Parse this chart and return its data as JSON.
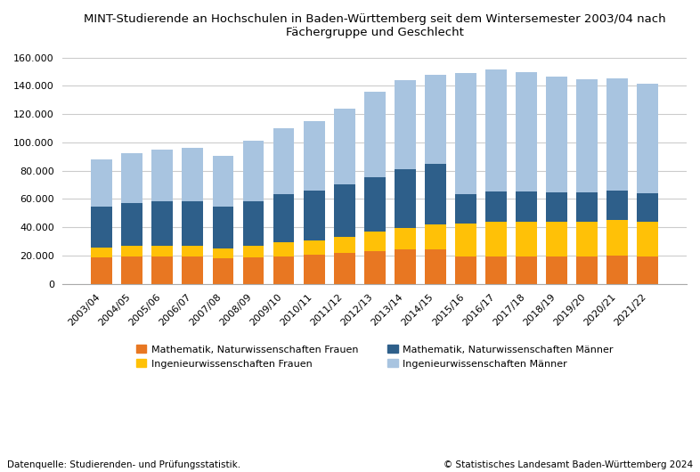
{
  "years": [
    "2003/04",
    "2004/05",
    "2005/06",
    "2006/07",
    "2007/08",
    "2008/09",
    "2009/10",
    "2010/11",
    "2011/12",
    "2012/13",
    "2013/14",
    "2014/15",
    "2015/16",
    "2016/17",
    "2017/18",
    "2018/19",
    "2019/20",
    "2020/21",
    "2021/22"
  ],
  "math_nat_frauen": [
    18500,
    19000,
    19000,
    19000,
    18000,
    18500,
    19500,
    20500,
    21500,
    23000,
    24000,
    24500,
    19000,
    19500,
    19500,
    19500,
    19500,
    20000,
    19500
  ],
  "ing_frauen": [
    7000,
    7500,
    7500,
    8000,
    7000,
    8500,
    9500,
    10000,
    11500,
    14000,
    15500,
    17500,
    23500,
    24500,
    24500,
    24500,
    24500,
    25000,
    24500
  ],
  "math_nat_maenner": [
    29000,
    30500,
    31500,
    31500,
    29500,
    31500,
    34500,
    35500,
    37000,
    38000,
    41500,
    42500,
    21000,
    21000,
    21000,
    20500,
    20500,
    21000,
    20000
  ],
  "ing_maenner": [
    33500,
    35500,
    37000,
    37500,
    36000,
    42500,
    46500,
    49000,
    54000,
    60500,
    63000,
    63500,
    85500,
    86500,
    84500,
    82000,
    80000,
    79000,
    77500
  ],
  "color_math_nat_frauen": "#E87722",
  "color_ing_frauen": "#FFC107",
  "color_math_nat_maenner": "#2E5F8A",
  "color_ing_maenner": "#A8C4E0",
  "title": "MINT-Studierende an Hochschulen in Baden-Württemberg seit dem Wintersemester 2003/04 nach\nFächergruppe und Geschlecht",
  "ylim": [
    0,
    165000
  ],
  "yticks": [
    0,
    20000,
    40000,
    60000,
    80000,
    100000,
    120000,
    140000,
    160000
  ],
  "ytick_labels": [
    "0",
    "20.000",
    "40.000",
    "60.000",
    "80.000",
    "100.000",
    "120.000",
    "140.000",
    "160.000"
  ],
  "legend_labels": [
    "Mathematik, Naturwissenschaften Frauen",
    "Ingenieurwissenschaften Frauen",
    "Mathematik, Naturwissenschaften Männer",
    "Ingenieurwissenschaften Männer"
  ],
  "footer_left": "Datenquelle: Studierenden- und Prüfungsstatistik.",
  "footer_right": "© Statistisches Landesamt Baden-Württemberg 2024",
  "title_fontsize": 9.5,
  "tick_fontsize": 8,
  "legend_fontsize": 8,
  "footer_fontsize": 7.5,
  "background_color": "#FFFFFF",
  "bar_width": 0.7,
  "grid_color": "#CCCCCC",
  "spine_color": "#AAAAAA"
}
